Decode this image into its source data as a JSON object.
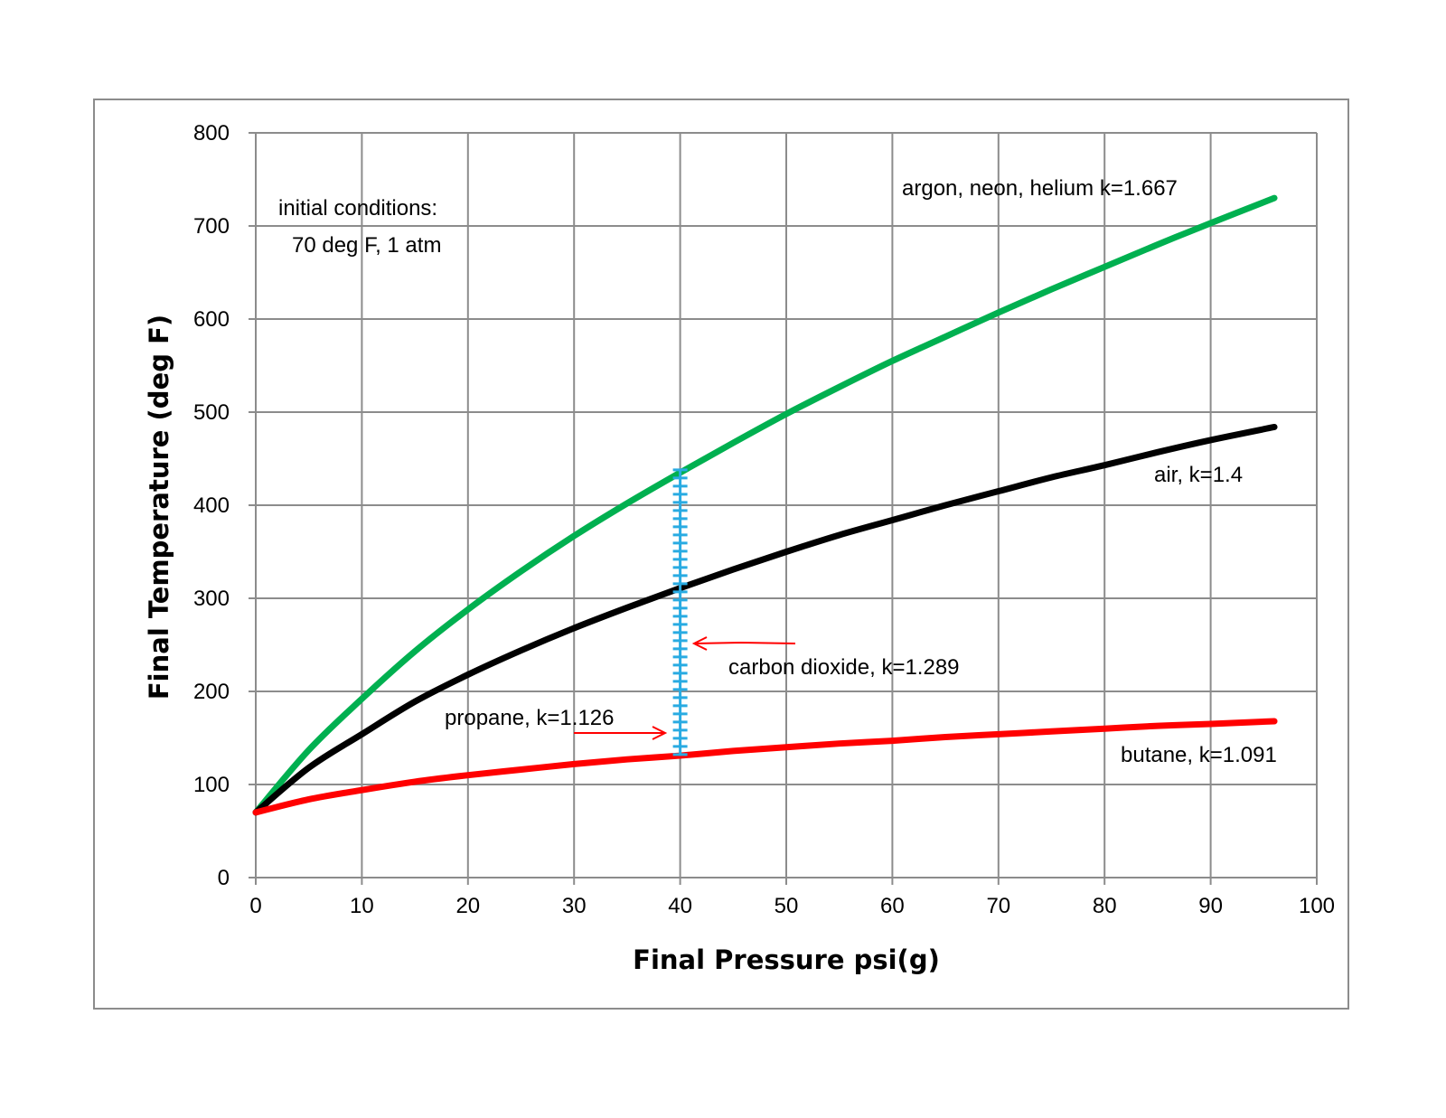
{
  "chart_data": {
    "type": "line",
    "title": "",
    "xlabel": "Final Pressure psi(g)",
    "ylabel": "Final Temperature (deg F)",
    "xlim": [
      0,
      100
    ],
    "ylim": [
      0,
      800
    ],
    "x_ticks": [
      "0",
      "10",
      "20",
      "30",
      "40",
      "50",
      "60",
      "70",
      "80",
      "90",
      "100"
    ],
    "y_ticks": [
      "0",
      "100",
      "200",
      "300",
      "400",
      "500",
      "600",
      "700",
      "800"
    ],
    "grid": true,
    "legend": "none",
    "x": [
      0,
      5,
      10,
      15,
      20,
      25,
      30,
      35,
      40,
      45,
      50,
      55,
      60,
      65,
      70,
      75,
      80,
      85,
      90,
      96
    ],
    "series": [
      {
        "name": "argon, neon, helium k=1.667",
        "color": "#00b050",
        "y": [
          70,
          137,
          192,
          243,
          288,
          329,
          367,
          402,
          435,
          467,
          498,
          527,
          555,
          581,
          607,
          632,
          656,
          680,
          703,
          730
        ]
      },
      {
        "name": "air, k=1.4",
        "color": "#000000",
        "y": [
          70,
          118,
          154,
          189,
          218,
          244,
          268,
          290,
          311,
          331,
          350,
          368,
          384,
          400,
          415,
          430,
          443,
          457,
          470,
          484
        ]
      },
      {
        "name": "butane, k=1.091",
        "color": "#ff0000",
        "y": [
          70,
          84,
          94,
          103,
          110,
          116,
          122,
          127,
          131,
          136,
          140,
          144,
          147,
          151,
          154,
          157,
          160,
          163,
          165,
          168
        ]
      },
      {
        "name": "carbon dioxide, k=1.289 / propane, k=1.126",
        "color": "#29abe2",
        "style": "dashed-range",
        "x": [
          40,
          40
        ],
        "y": [
          131,
          438
        ]
      }
    ],
    "annotations": [
      {
        "id": "initial1",
        "text": "initial conditions:"
      },
      {
        "id": "initial2",
        "text": "70 deg F, 1 atm"
      },
      {
        "id": "argon",
        "text": "argon, neon, helium k=1.667"
      },
      {
        "id": "air",
        "text": "air, k=1.4"
      },
      {
        "id": "co2",
        "text": "carbon dioxide, k=1.289"
      },
      {
        "id": "propane",
        "text": "propane, k=1.126"
      },
      {
        "id": "butane",
        "text": "butane, k=1.091"
      }
    ]
  }
}
